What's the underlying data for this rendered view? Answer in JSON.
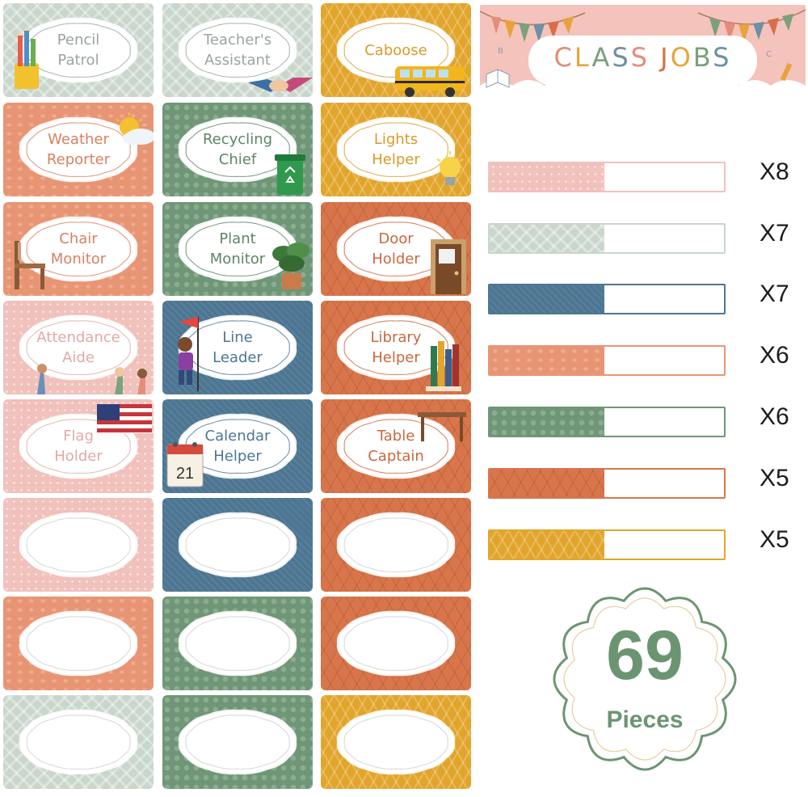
{
  "banner": {
    "title": "CLASS JOBS",
    "letter_colors": [
      "#e58c7a",
      "#e8a23b",
      "#7ba07c",
      "#6e8fa5",
      "#e58c7a",
      "#d86f4a",
      "#e8a23b",
      "#7ba07c",
      "#6e8fa5"
    ]
  },
  "cards": [
    {
      "label": "Pencil\nPatrol",
      "color": "sage",
      "text_color": "#9aa59c",
      "deco": "pencil-cup-icon"
    },
    {
      "label": "Teacher's\nAssistant",
      "color": "sage",
      "text_color": "#9aa59c",
      "deco": "handshake-icon"
    },
    {
      "label": "Caboose",
      "color": "mustard",
      "text_color": "#d99a2b",
      "deco": "school-bus-icon"
    },
    {
      "label": "Weather\nReporter",
      "color": "salmon",
      "text_color": "#d9805f",
      "deco": "sun-cloud-icon"
    },
    {
      "label": "Recycling\nChief",
      "color": "green",
      "text_color": "#5d8566",
      "deco": "recycle-bin-icon"
    },
    {
      "label": "Lights\nHelper",
      "color": "mustard",
      "text_color": "#d99a2b",
      "deco": "light-bulb-icon"
    },
    {
      "label": "Chair\nMonitor",
      "color": "salmon",
      "text_color": "#d9805f",
      "deco": "chair-icon"
    },
    {
      "label": "Plant\nMonitor",
      "color": "green",
      "text_color": "#5d8566",
      "deco": "potted-plant-icon"
    },
    {
      "label": "Door\nHolder",
      "color": "orange",
      "text_color": "#c9683f",
      "deco": "door-icon"
    },
    {
      "label": "Attendance\nAide",
      "color": "pink",
      "text_color": "#e2aaa5",
      "deco": "raised-hands-icon"
    },
    {
      "label": "Line\nLeader",
      "color": "blue",
      "text_color": "#4d7693",
      "deco": "child-flag-icon"
    },
    {
      "label": "Library\nHelper",
      "color": "orange",
      "text_color": "#c9683f",
      "deco": "books-icon"
    },
    {
      "label": "Flag\nHolder",
      "color": "pink",
      "text_color": "#e2aaa5",
      "deco": "us-flag-icon"
    },
    {
      "label": "Calendar\nHelper",
      "color": "blue",
      "text_color": "#4d7693",
      "deco": "calendar-icon",
      "calendar_day": "21"
    },
    {
      "label": "Table\nCaptain",
      "color": "orange",
      "text_color": "#c9683f",
      "deco": "table-icon"
    },
    {
      "label": "",
      "color": "pink"
    },
    {
      "label": "",
      "color": "blue"
    },
    {
      "label": "",
      "color": "orange"
    },
    {
      "label": "",
      "color": "salmon"
    },
    {
      "label": "",
      "color": "green"
    },
    {
      "label": "",
      "color": "orange"
    },
    {
      "label": "",
      "color": "sage"
    },
    {
      "label": "",
      "color": "green"
    },
    {
      "label": "",
      "color": "mustard"
    }
  ],
  "strips": [
    {
      "color": "pink",
      "fill": "#f1c1bc",
      "border": "#f1c1bc",
      "count": "X8"
    },
    {
      "color": "sage",
      "fill": "#c9d6cc",
      "border": "#c9d6cc",
      "count": "X7"
    },
    {
      "color": "blue",
      "fill": "#4d7693",
      "border": "#4d7693",
      "count": "X7"
    },
    {
      "color": "salmon",
      "fill": "#e89574",
      "border": "#e89574",
      "count": "X6"
    },
    {
      "color": "green",
      "fill": "#6f9777",
      "border": "#6f9777",
      "count": "X6"
    },
    {
      "color": "orange",
      "fill": "#d9754a",
      "border": "#d9754a",
      "count": "X5"
    },
    {
      "color": "mustard",
      "fill": "#e2a52c",
      "border": "#e2a52c",
      "count": "X5"
    }
  ],
  "badge": {
    "number": "69",
    "label": "Pieces",
    "color": "#6b9571"
  }
}
